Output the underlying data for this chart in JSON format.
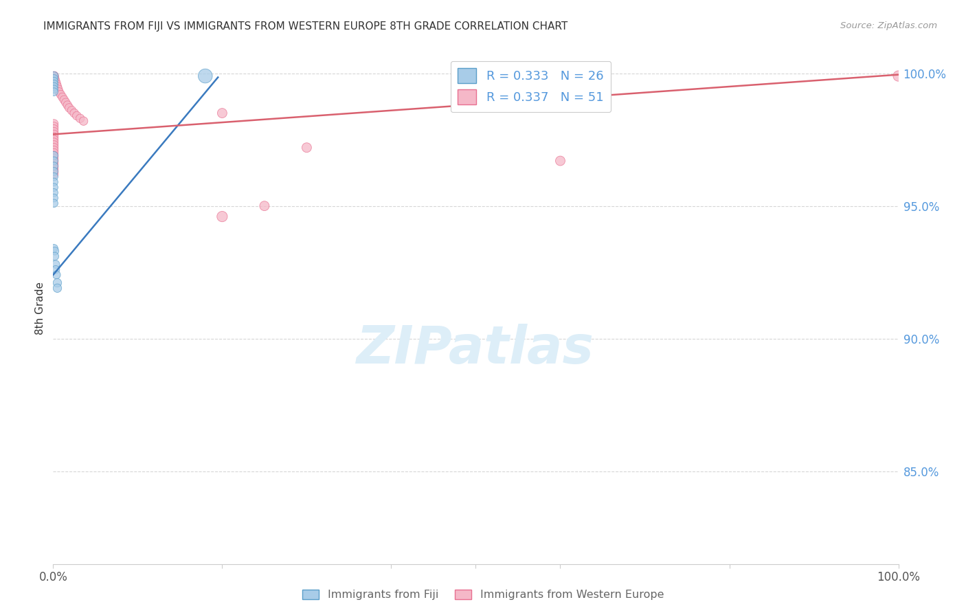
{
  "title": "IMMIGRANTS FROM FIJI VS IMMIGRANTS FROM WESTERN EUROPE 8TH GRADE CORRELATION CHART",
  "source": "Source: ZipAtlas.com",
  "ylabel": "8th Grade",
  "legend_fiji_R": "0.333",
  "legend_fiji_N": "26",
  "legend_we_R": "0.337",
  "legend_we_N": "51",
  "fiji_color": "#a8cce8",
  "fiji_edge_color": "#5a9ec9",
  "we_color": "#f5b8c8",
  "we_edge_color": "#e87090",
  "fiji_line_color": "#3a7abf",
  "we_line_color": "#d9606e",
  "background_color": "#ffffff",
  "watermark_color": "#ddeef8",
  "grid_color": "#cccccc",
  "right_tick_color": "#5599dd",
  "title_color": "#333333",
  "source_color": "#999999",
  "ylabel_color": "#333333",
  "bottom_label_color": "#666666",
  "xlim": [
    0.0,
    1.0
  ],
  "ylim": [
    0.815,
    1.008
  ],
  "yticks": [
    1.0,
    0.95,
    0.9,
    0.85
  ],
  "ytick_labels": [
    "100.0%",
    "95.0%",
    "90.0%",
    "85.0%"
  ],
  "fiji_x": [
    0.001,
    0.001,
    0.001,
    0.001,
    0.001,
    0.001,
    0.001,
    0.001,
    0.001,
    0.001,
    0.001,
    0.001,
    0.001,
    0.001,
    0.001,
    0.001,
    0.001,
    0.001,
    0.002,
    0.002,
    0.003,
    0.003,
    0.004,
    0.005,
    0.005,
    0.18
  ],
  "fiji_y": [
    0.999,
    0.998,
    0.997,
    0.996,
    0.995,
    0.994,
    0.993,
    0.969,
    0.967,
    0.965,
    0.963,
    0.961,
    0.959,
    0.957,
    0.955,
    0.953,
    0.951,
    0.934,
    0.933,
    0.931,
    0.928,
    0.926,
    0.924,
    0.921,
    0.919,
    0.999
  ],
  "fiji_s": [
    80,
    70,
    70,
    70,
    70,
    70,
    70,
    70,
    70,
    70,
    70,
    70,
    70,
    70,
    70,
    70,
    70,
    70,
    70,
    70,
    70,
    70,
    70,
    80,
    80,
    220
  ],
  "we_x": [
    0.001,
    0.001,
    0.001,
    0.001,
    0.001,
    0.001,
    0.001,
    0.001,
    0.002,
    0.003,
    0.004,
    0.005,
    0.006,
    0.007,
    0.009,
    0.011,
    0.013,
    0.015,
    0.017,
    0.019,
    0.022,
    0.025,
    0.028,
    0.032,
    0.036,
    0.001,
    0.001,
    0.001,
    0.001,
    0.001,
    0.001,
    0.001,
    0.001,
    0.001,
    0.001,
    0.001,
    0.001,
    0.001,
    0.001,
    0.001,
    0.001,
    0.001,
    0.001,
    0.001,
    0.001,
    0.2,
    0.3,
    0.6,
    0.25,
    0.2,
    1.0
  ],
  "we_y": [
    0.999,
    0.999,
    0.999,
    0.999,
    0.999,
    0.999,
    0.999,
    0.999,
    0.998,
    0.997,
    0.996,
    0.995,
    0.994,
    0.993,
    0.992,
    0.991,
    0.99,
    0.989,
    0.988,
    0.987,
    0.986,
    0.985,
    0.984,
    0.983,
    0.982,
    0.981,
    0.98,
    0.979,
    0.978,
    0.977,
    0.976,
    0.975,
    0.974,
    0.973,
    0.972,
    0.971,
    0.97,
    0.969,
    0.968,
    0.967,
    0.966,
    0.965,
    0.964,
    0.963,
    0.962,
    0.985,
    0.972,
    0.967,
    0.95,
    0.946,
    0.999
  ],
  "we_s": [
    80,
    80,
    80,
    80,
    80,
    80,
    80,
    80,
    80,
    80,
    80,
    80,
    80,
    80,
    80,
    80,
    80,
    80,
    80,
    80,
    80,
    80,
    80,
    80,
    80,
    80,
    80,
    80,
    80,
    80,
    80,
    80,
    80,
    80,
    80,
    80,
    80,
    80,
    80,
    80,
    80,
    80,
    80,
    80,
    80,
    100,
    100,
    100,
    100,
    120,
    120
  ],
  "fiji_trend_x": [
    0.0,
    0.195
  ],
  "fiji_trend_y": [
    0.924,
    0.9985
  ],
  "we_trend_x": [
    0.0,
    1.0
  ],
  "we_trend_y": [
    0.977,
    0.9995
  ]
}
